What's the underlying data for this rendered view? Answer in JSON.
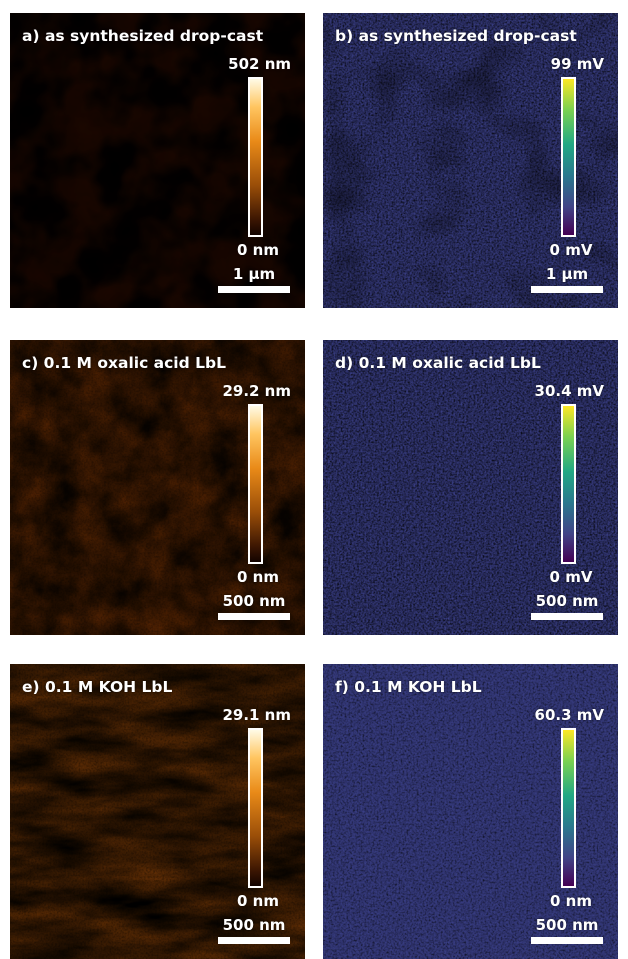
{
  "panels": [
    {
      "title": "a) as synthesized drop-cast",
      "max": "502 nm",
      "min": "0 nm",
      "scale": "1 µm",
      "type": "afm-coarse"
    },
    {
      "title": "b) as synthesized drop-cast",
      "max": "99 mV",
      "min": "0 mV",
      "scale": "1 µm",
      "type": "kpfm-blobs"
    },
    {
      "title": "c) 0.1 M oxalic acid LbL",
      "max": "29.2 nm",
      "min": "0 nm",
      "scale": "500 nm",
      "type": "afm-fine"
    },
    {
      "title": "d) 0.1 M oxalic acid LbL",
      "max": "30.4 mV",
      "min": "0 mV",
      "scale": "500 nm",
      "type": "kpfm-noise"
    },
    {
      "title": "e) 0.1 M KOH LbL",
      "max": "29.1 nm",
      "min": "0 nm",
      "scale": "500 nm",
      "type": "afm-bright"
    },
    {
      "title": "f) 0.1 M KOH LbL",
      "max": "60.3 mV",
      "min": "0 nm",
      "scale": "500 nm",
      "type": "kpfm-noise"
    }
  ],
  "colors": {
    "afm_dark": "#2a0d00",
    "afm_mid": "#c8680c",
    "afm_light": "#ffd27a",
    "kpfm_dark": "#30327c",
    "kpfm_mid": "#1f8f8a",
    "kpfm_light": "#d8e219"
  }
}
